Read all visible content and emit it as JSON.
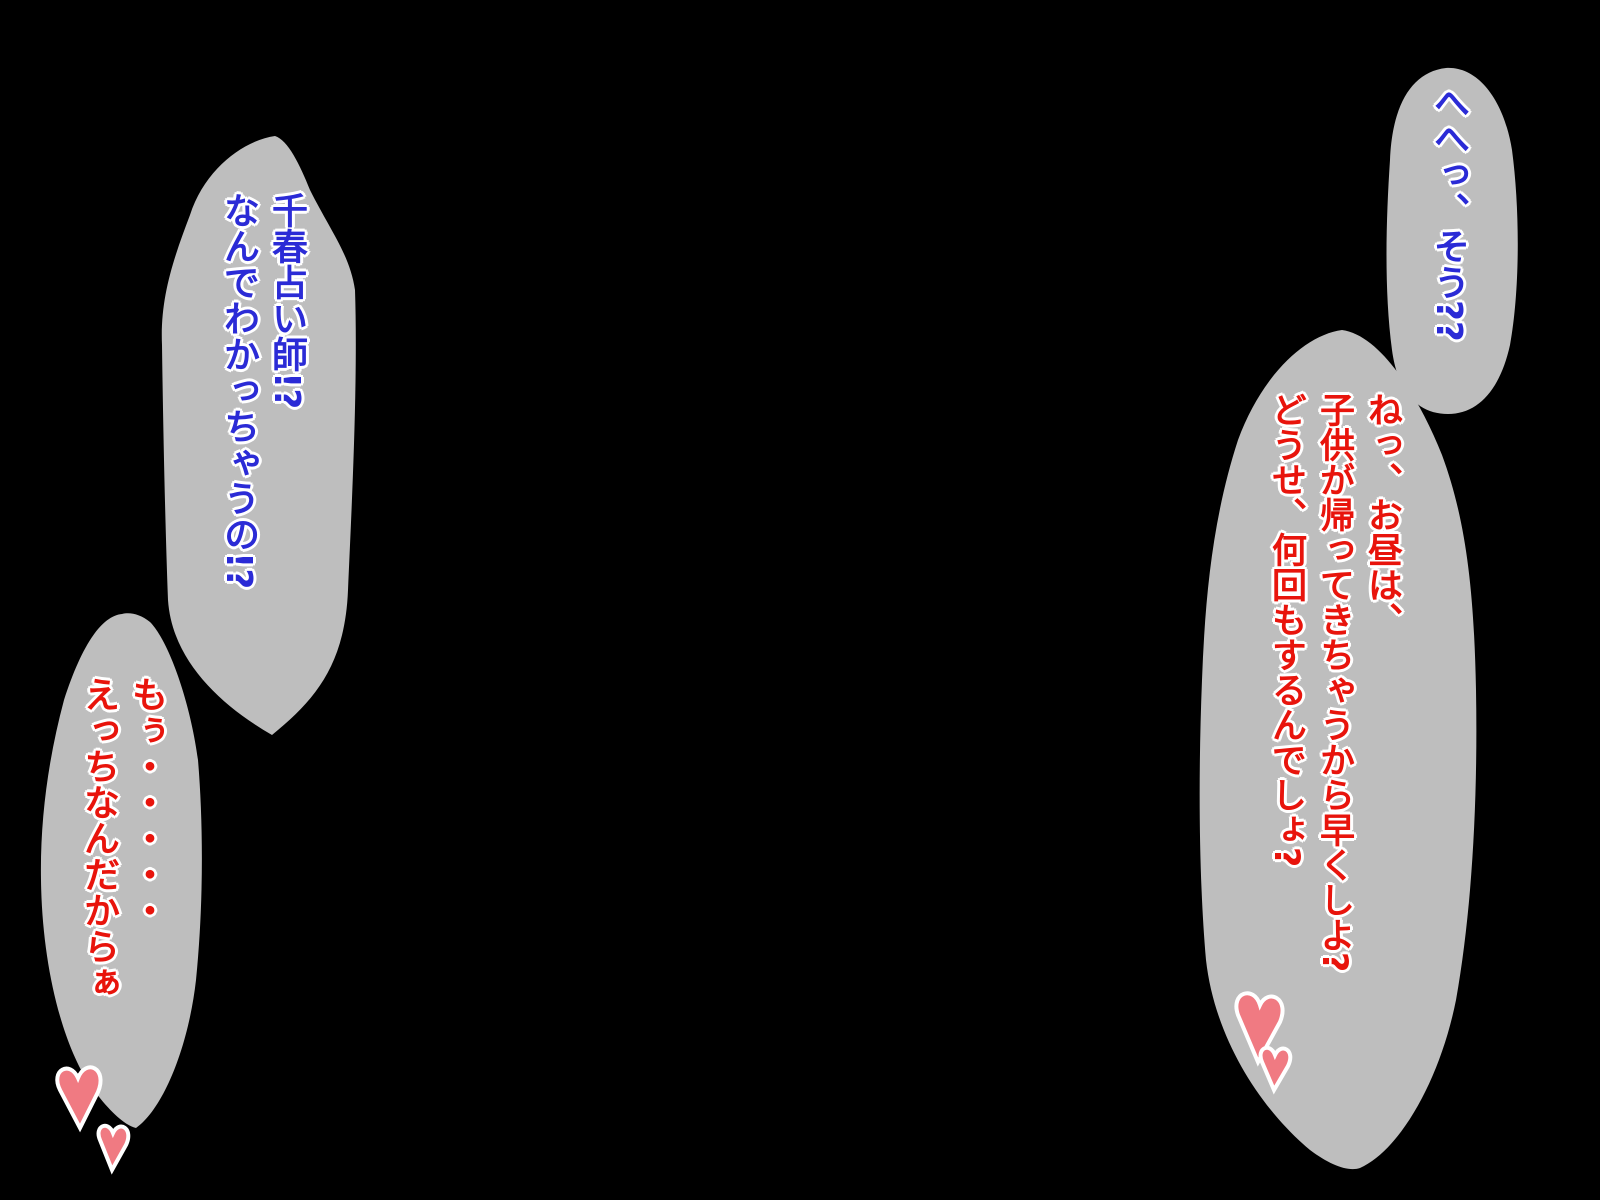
{
  "colors": {
    "background": "#000000",
    "balloon": "#bebebe",
    "blue_text": "#2b2bd6",
    "red_text": "#e8140c",
    "heart": "#f07a82"
  },
  "balloons": {
    "left_upper": {
      "lines": [
        "千春占い師!?",
        "なんでわかっちゃうの!?"
      ]
    },
    "left_lower": {
      "lines": [
        "もぅ・・・・・",
        "えっちなんだからぁ"
      ]
    },
    "right_upper": {
      "lines": [
        "へへっ、そう??"
      ]
    },
    "right_lower": {
      "lines": [
        "ねっ、お昼は、",
        "子供が帰ってきちゃうから早くしよ?",
        "どうせ、何回もするんでしょ?"
      ]
    }
  },
  "decorations": {
    "heart_icon": "heart-icon"
  }
}
